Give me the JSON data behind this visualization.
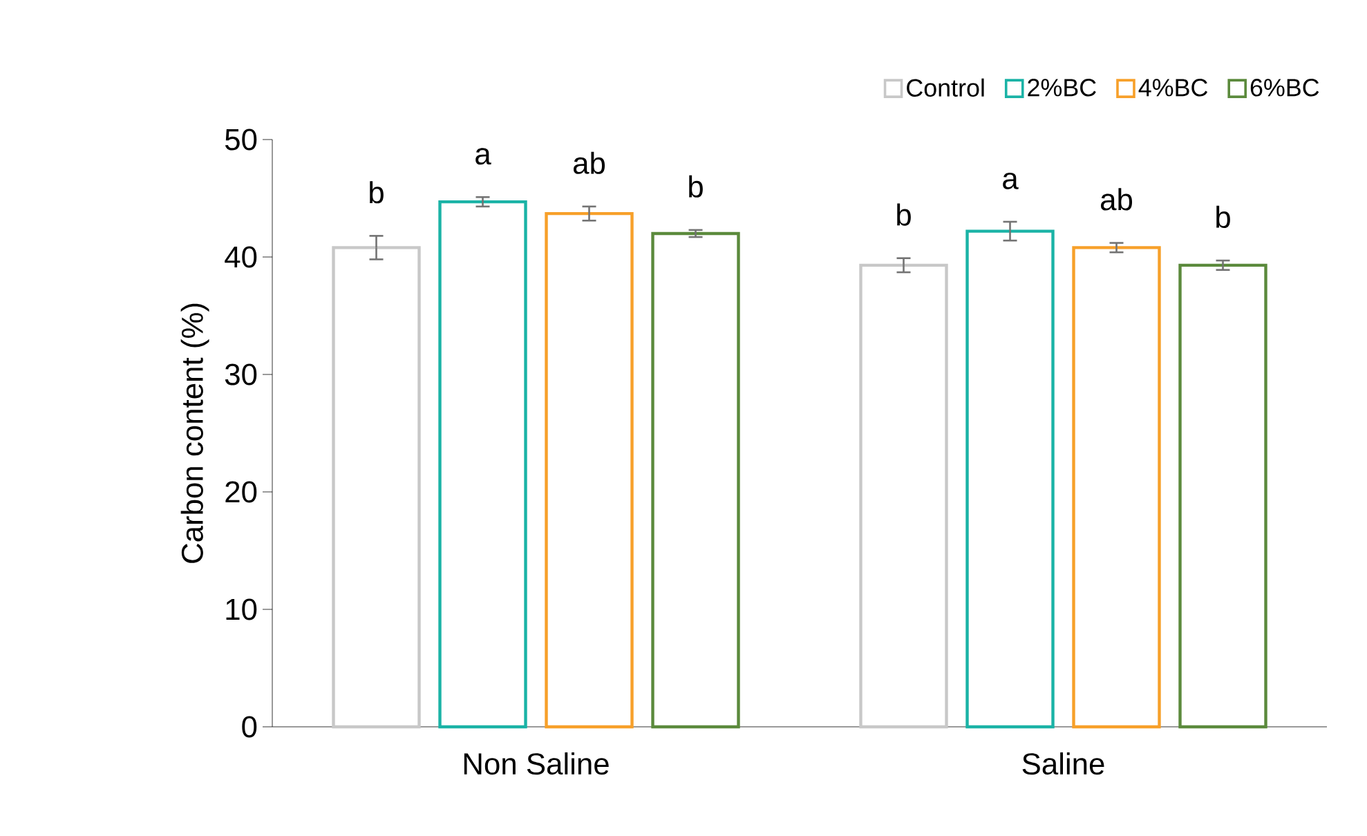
{
  "chart_data": {
    "type": "bar",
    "ylabel": "Carbon content (%)",
    "categories": [
      "Non Saline",
      "Saline"
    ],
    "series": [
      {
        "name": "Control",
        "color": "#c8c8c8",
        "values": [
          40.8,
          39.3
        ],
        "errors": [
          1.0,
          0.6
        ]
      },
      {
        "name": "2%BC",
        "color": "#1ab3a6",
        "values": [
          44.7,
          42.2
        ],
        "errors": [
          0.4,
          0.8
        ]
      },
      {
        "name": "4%BC",
        "color": "#f7a02a",
        "values": [
          43.7,
          40.8
        ],
        "errors": [
          0.6,
          0.4
        ]
      },
      {
        "name": "6%BC",
        "color": "#5b8a3c",
        "values": [
          42.0,
          39.3
        ],
        "errors": [
          0.3,
          0.4
        ]
      }
    ],
    "ylim": [
      0,
      50
    ],
    "yticks": [
      0,
      10,
      20,
      30,
      40,
      50
    ],
    "legend": "top right",
    "grid": false,
    "annotations": [
      "b",
      "a",
      "ab",
      "b",
      "b",
      "a",
      "ab",
      "b"
    ]
  }
}
